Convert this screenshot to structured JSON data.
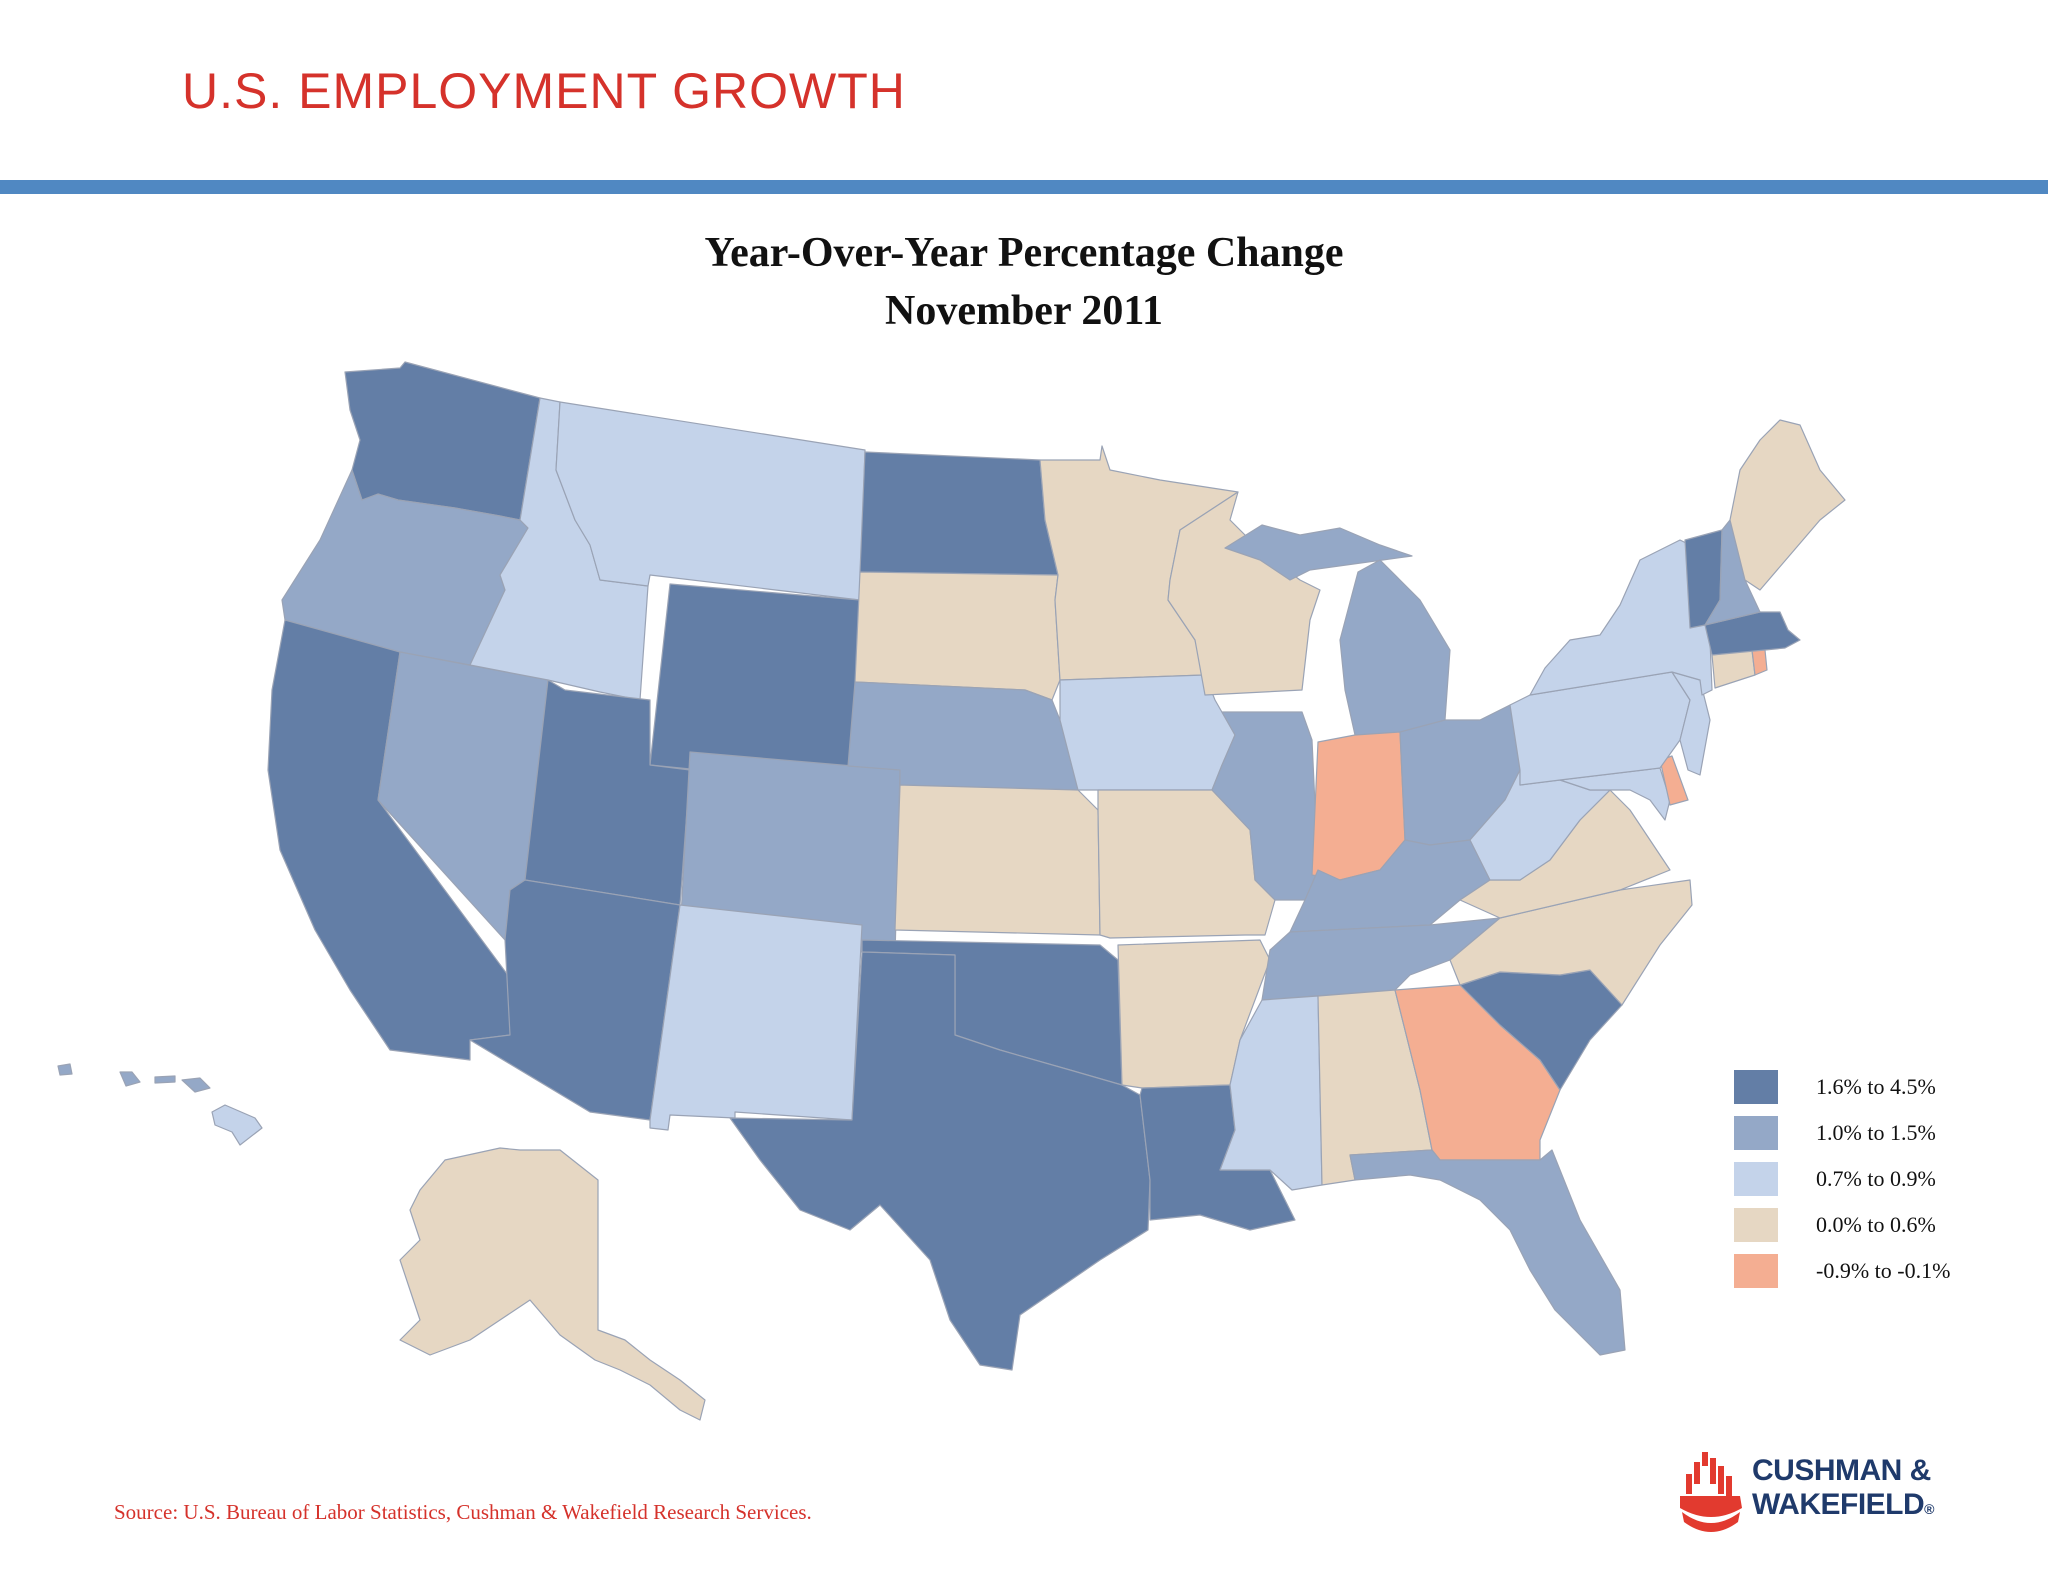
{
  "header": {
    "title": "U.S. EMPLOYMENT GROWTH"
  },
  "map": {
    "title_line1": "Year-Over-Year Percentage Change",
    "title_line2": "November 2011",
    "colors": {
      "c1": "#637ea6",
      "c2": "#94a8c7",
      "c3": "#c4d3ea",
      "c4": "#e6d7c3",
      "c5": "#f4ae92"
    }
  },
  "legend": [
    {
      "label": "1.6% to 4.5%",
      "color": "#637ea6"
    },
    {
      "label": "1.0% to 1.5%",
      "color": "#94a8c7"
    },
    {
      "label": "0.7% to 0.9%",
      "color": "#c4d3ea"
    },
    {
      "label": "0.0% to  0.6%",
      "color": "#e6d7c3"
    },
    {
      "label": "-0.9% to  -0.1%",
      "color": "#f4ae92"
    }
  ],
  "source": "Source:  U.S. Bureau of Labor Statistics, Cushman & Wakefield Research Services.",
  "logo": {
    "line1": "CUSHMAN &",
    "line2": "WAKEFIELD",
    "mark": "®"
  }
}
